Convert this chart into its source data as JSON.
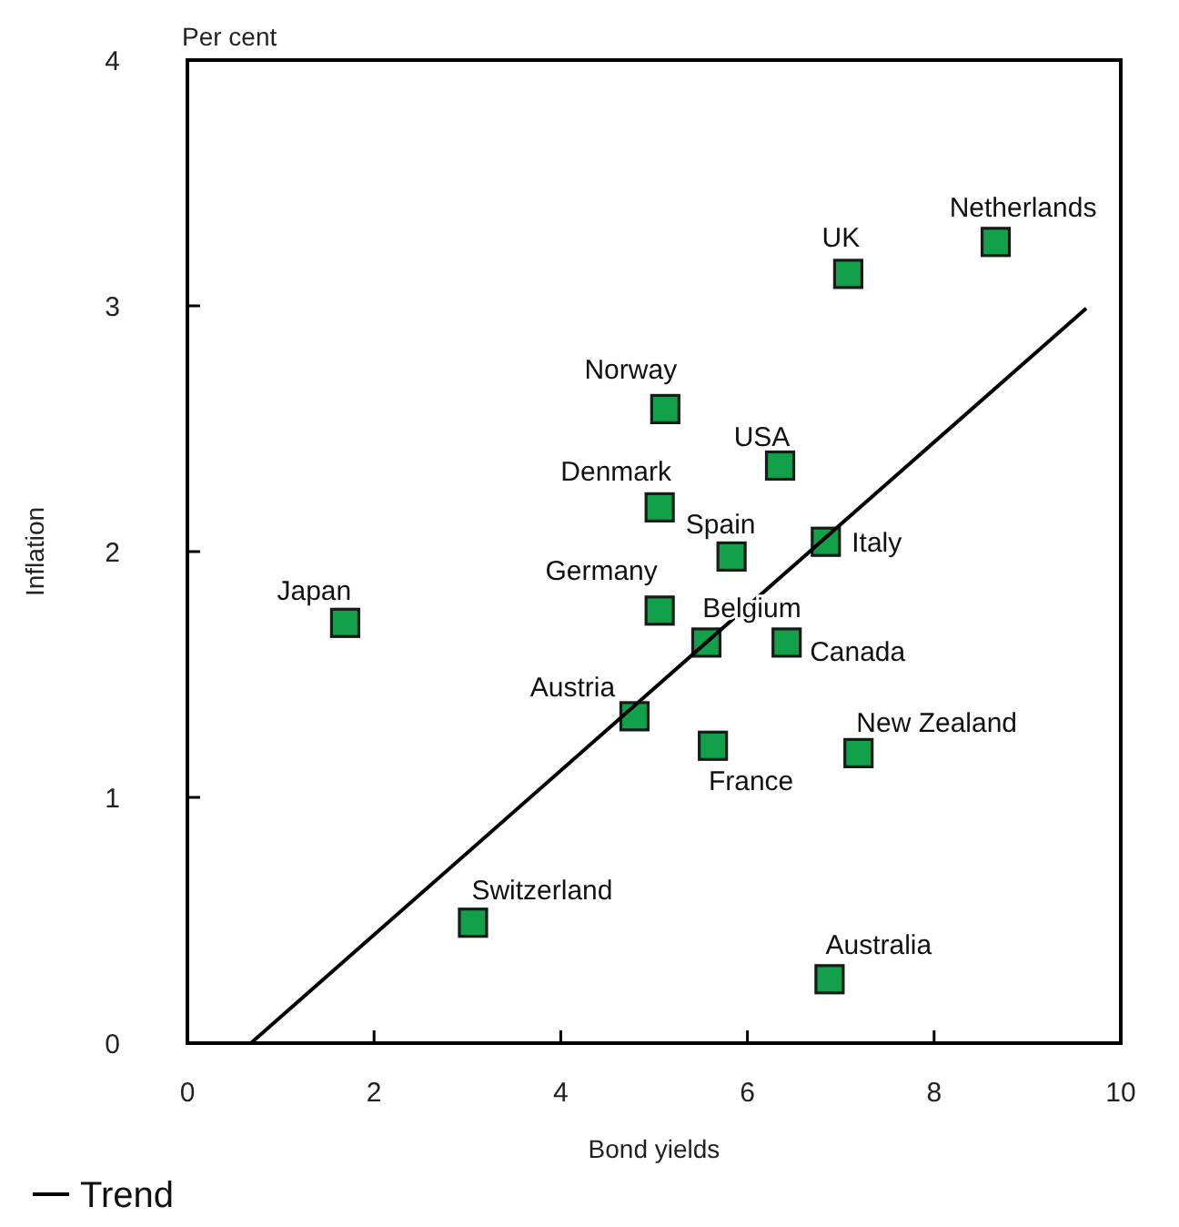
{
  "chart_data": {
    "type": "scatter",
    "xlabel": "Bond yields",
    "ylabel": "Inflation",
    "xlim": [
      0,
      10
    ],
    "ylim": [
      0,
      4
    ],
    "xticks": [
      0,
      2,
      4,
      6,
      8,
      10
    ],
    "yticks": [
      0,
      1,
      2,
      3,
      4
    ],
    "grid": false,
    "legend": "bottom left",
    "marker": "square",
    "series": [
      {
        "color": "#12a04a",
        "x": [
          1.69,
          3.06,
          4.79,
          5.06,
          5.06,
          5.12,
          5.56,
          5.63,
          5.83,
          6.35,
          6.42,
          6.84,
          6.88,
          7.08,
          7.19,
          8.66
        ],
        "values": [
          1.71,
          0.49,
          1.33,
          1.76,
          2.18,
          2.58,
          1.63,
          1.21,
          1.98,
          2.35,
          1.63,
          2.04,
          0.26,
          3.13,
          1.18,
          3.26
        ]
      },
      {
        "type": "line",
        "name": "Trend",
        "color": "#000000",
        "line_style": "solid",
        "marker": "none",
        "x": [
          0.68,
          9.63
        ],
        "values": [
          0,
          2.99
        ]
      }
    ],
    "annotations": [
      "Per cent",
      {
        "text": "Japan",
        "x": 1.69,
        "y": 1.71
      },
      {
        "text": "Switzerland",
        "x": 3.06,
        "y": 0.49
      },
      {
        "text": "Austria",
        "x": 4.79,
        "y": 1.33
      },
      {
        "text": "Germany",
        "x": 5.06,
        "y": 1.76
      },
      {
        "text": "Denmark",
        "x": 5.06,
        "y": 2.18
      },
      {
        "text": "Norway",
        "x": 5.12,
        "y": 2.58
      },
      {
        "text": "Belgium",
        "x": 5.56,
        "y": 1.63
      },
      {
        "text": "France",
        "x": 5.63,
        "y": 1.21
      },
      {
        "text": "Spain",
        "x": 5.83,
        "y": 1.98
      },
      {
        "text": "USA",
        "x": 6.35,
        "y": 2.35
      },
      {
        "text": "Canada",
        "x": 6.42,
        "y": 1.63
      },
      {
        "text": "Italy",
        "x": 6.84,
        "y": 2.04
      },
      {
        "text": "Australia",
        "x": 6.88,
        "y": 0.26
      },
      {
        "text": "UK",
        "x": 7.08,
        "y": 3.13
      },
      {
        "text": "New Zealand",
        "x": 7.19,
        "y": 1.18
      },
      {
        "text": "Netherlands",
        "x": 8.66,
        "y": 3.26
      }
    ]
  }
}
